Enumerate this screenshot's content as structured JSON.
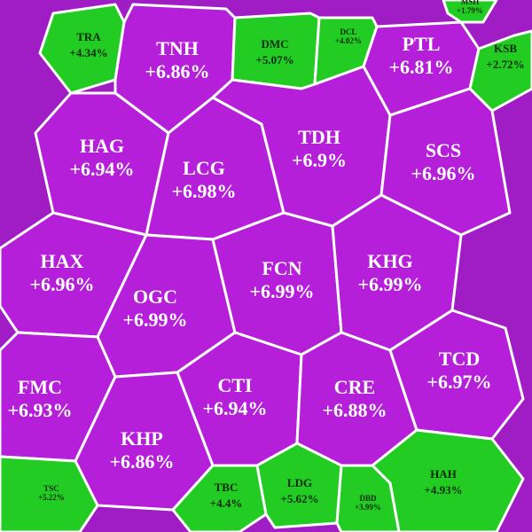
{
  "chart_data": {
    "type": "voronoi",
    "categories": [
      "TRA",
      "TNH",
      "DMC",
      "DCL",
      "PTL",
      "KSB",
      "HAG",
      "LCG",
      "TDH",
      "SCS",
      "HAX",
      "OGC",
      "FCN",
      "KHG",
      "FMC",
      "CTI",
      "CRE",
      "TCD",
      "KHP",
      "HAH",
      "TSC",
      "TBC",
      "LDG",
      "DBD",
      "MSH"
    ],
    "values": [
      4.34,
      6.86,
      5.07,
      4.02,
      6.81,
      2.72,
      6.94,
      6.98,
      6.9,
      6.96,
      6.96,
      6.99,
      6.99,
      6.99,
      6.93,
      6.94,
      6.88,
      6.97,
      6.86,
      4.93,
      5.22,
      4.4,
      5.62,
      3.99,
      1.79
    ],
    "value_labels": [
      "+4.34%",
      "+6.86%",
      "+5.07%",
      "+4.02%",
      "+6.81%",
      "+2.72%",
      "+6.94%",
      "+6.98%",
      "+6.9%",
      "+6.96%",
      "+6.96%",
      "+6.99%",
      "+6.99%",
      "+6.99%",
      "+6.93%",
      "+6.94%",
      "+6.88%",
      "+6.97%",
      "+6.86%",
      "+4.93%",
      "+5.22%",
      "+4.4%",
      "+5.62%",
      "+3.99%",
      "+1.79%"
    ],
    "colors": [
      "#22cc22",
      "#b51fd9",
      "#22cc22",
      "#22cc22",
      "#b51fd9",
      "#22cc22",
      "#b51fd9",
      "#b51fd9",
      "#b51fd9",
      "#b51fd9",
      "#b51fd9",
      "#b51fd9",
      "#b51fd9",
      "#b51fd9",
      "#b51fd9",
      "#b51fd9",
      "#b51fd9",
      "#b51fd9",
      "#b51fd9",
      "#22cc22",
      "#22cc22",
      "#22cc22",
      "#22cc22",
      "#22cc22",
      "#22cc22"
    ]
  }
}
